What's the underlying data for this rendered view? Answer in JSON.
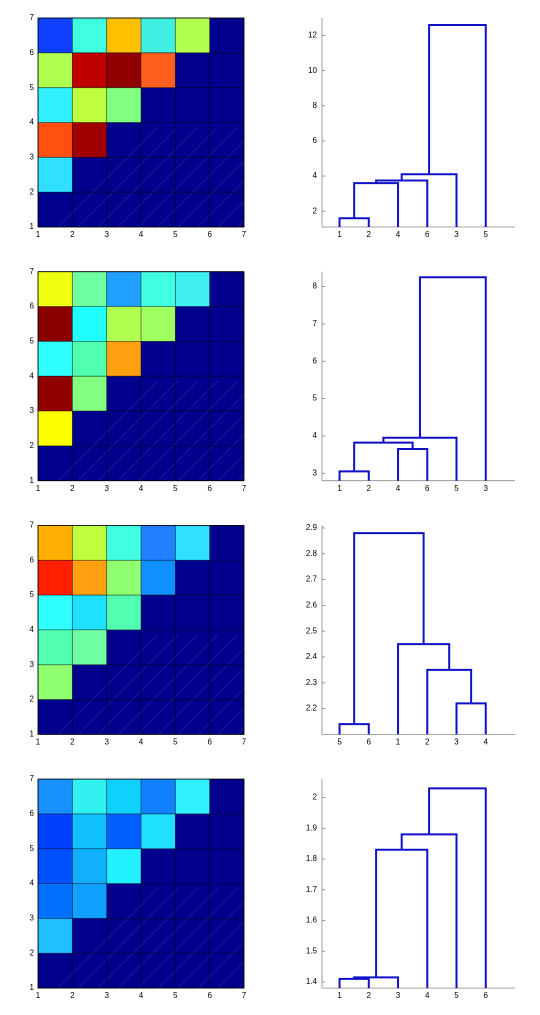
{
  "chart_data": [
    {
      "type": "heatmap",
      "xlim": [
        1,
        7
      ],
      "ylim": [
        1,
        7
      ],
      "xticks": [
        1,
        2,
        3,
        4,
        5,
        6,
        7
      ],
      "yticks": [
        1,
        2,
        3,
        4,
        5,
        6,
        7
      ],
      "grid": true,
      "background": "#00008c",
      "cell_colors": [
        [
          "#1040ff",
          "#40ffe0",
          "#ffc000",
          "#40f0e0",
          "#b0ff50"
        ],
        [
          "#b0ff50",
          "#c00000",
          "#900000",
          "#ff6020"
        ],
        [
          "#30f0ff",
          "#c0ff40",
          "#80ff80"
        ],
        [
          "#ff5010",
          "#a00000"
        ],
        [
          "#30e0ff"
        ]
      ]
    },
    {
      "type": "dendrogram",
      "color": "#1010c8",
      "ylim": [
        1.1,
        13
      ],
      "yticks": [
        2,
        4,
        6,
        8,
        10,
        12
      ],
      "tree": {
        "height": 12.6,
        "children": [
          {
            "height": 4.1,
            "children": [
              {
                "height": 3.75,
                "children": [
                  {
                    "height": 3.6,
                    "children": [
                      {
                        "height": 1.6,
                        "children": [
                          "1",
                          "2"
                        ]
                      },
                      "4"
                    ]
                  },
                  "6"
                ]
              },
              "3"
            ]
          },
          "5"
        ]
      }
    },
    {
      "type": "heatmap",
      "xlim": [
        1,
        7
      ],
      "ylim": [
        1,
        7
      ],
      "xticks": [
        1,
        2,
        3,
        4,
        5,
        6,
        7
      ],
      "yticks": [
        1,
        2,
        3,
        4,
        5,
        6,
        7
      ],
      "grid": true,
      "background": "#00008c",
      "cell_colors": [
        [
          "#f0ff10",
          "#70ffa0",
          "#20a0ff",
          "#40ffe0",
          "#40f0f0"
        ],
        [
          "#8a0000",
          "#20ffff",
          "#b0ff50",
          "#a0ff60"
        ],
        [
          "#30ffff",
          "#50ffb0",
          "#ffa010"
        ],
        [
          "#900000",
          "#80ff80"
        ],
        [
          "#ffff00"
        ]
      ]
    },
    {
      "type": "dendrogram",
      "color": "#1010c8",
      "ylim": [
        2.8,
        8.4
      ],
      "yticks": [
        3,
        4,
        5,
        6,
        7,
        8
      ],
      "tree": {
        "height": 8.25,
        "children": [
          {
            "height": 3.95,
            "children": [
              {
                "height": 3.82,
                "children": [
                  {
                    "height": 3.05,
                    "children": [
                      "1",
                      "2"
                    ]
                  },
                  {
                    "height": 3.65,
                    "children": [
                      "4",
                      "6"
                    ]
                  }
                ]
              },
              "5"
            ]
          },
          "3"
        ]
      }
    },
    {
      "type": "heatmap",
      "xlim": [
        1,
        7
      ],
      "ylim": [
        1,
        7
      ],
      "xticks": [
        1,
        2,
        3,
        4,
        5,
        6,
        7
      ],
      "yticks": [
        1,
        2,
        3,
        4,
        5,
        6,
        7
      ],
      "grid": true,
      "background": "#00008c",
      "cell_colors": [
        [
          "#ffb000",
          "#c0ff40",
          "#40ffe0",
          "#2080ff",
          "#30e0ff"
        ],
        [
          "#ff2000",
          "#ffa010",
          "#90ff70",
          "#1090ff"
        ],
        [
          "#30ffff",
          "#20e0ff",
          "#50ffb0"
        ],
        [
          "#50ffb0",
          "#70ffa0"
        ],
        [
          "#90ff70"
        ]
      ]
    },
    {
      "type": "dendrogram",
      "color": "#1010c8",
      "ylim": [
        2.1,
        2.91
      ],
      "yticks": [
        2.2,
        2.3,
        2.4,
        2.5,
        2.6,
        2.7,
        2.8,
        2.9
      ],
      "tree": {
        "height": 2.88,
        "children": [
          {
            "height": 2.14,
            "children": [
              "5",
              "6"
            ]
          },
          {
            "height": 2.45,
            "children": [
              "1",
              {
                "height": 2.35,
                "children": [
                  "2",
                  {
                    "height": 2.22,
                    "children": [
                      "3",
                      "4"
                    ]
                  }
                ]
              }
            ]
          }
        ]
      }
    },
    {
      "type": "heatmap",
      "xlim": [
        1,
        7
      ],
      "ylim": [
        1,
        7
      ],
      "xticks": [
        1,
        2,
        3,
        4,
        5,
        6,
        7
      ],
      "yticks": [
        1,
        2,
        3,
        4,
        5,
        6,
        7
      ],
      "grid": true,
      "background": "#00008c",
      "cell_colors": [
        [
          "#1890ff",
          "#30f0f0",
          "#10d0ff",
          "#1080ff",
          "#30f0ff"
        ],
        [
          "#0040ff",
          "#10c0ff",
          "#0060ff",
          "#20e0ff"
        ],
        [
          "#0050ff",
          "#10b0ff",
          "#20f0ff"
        ],
        [
          "#0070ff",
          "#10a0ff"
        ],
        [
          "#20c0ff"
        ]
      ]
    },
    {
      "type": "dendrogram",
      "color": "#1010c8",
      "ylim": [
        1.38,
        2.06
      ],
      "yticks": [
        1.4,
        1.5,
        1.6,
        1.7,
        1.8,
        1.9,
        2
      ],
      "tree": {
        "height": 2.03,
        "children": [
          {
            "height": 1.88,
            "children": [
              {
                "height": 1.83,
                "children": [
                  {
                    "height": 1.415,
                    "children": [
                      {
                        "height": 1.41,
                        "children": [
                          "1",
                          "2"
                        ]
                      },
                      "3"
                    ]
                  },
                  "4"
                ]
              },
              "5"
            ]
          },
          "6"
        ]
      }
    }
  ]
}
